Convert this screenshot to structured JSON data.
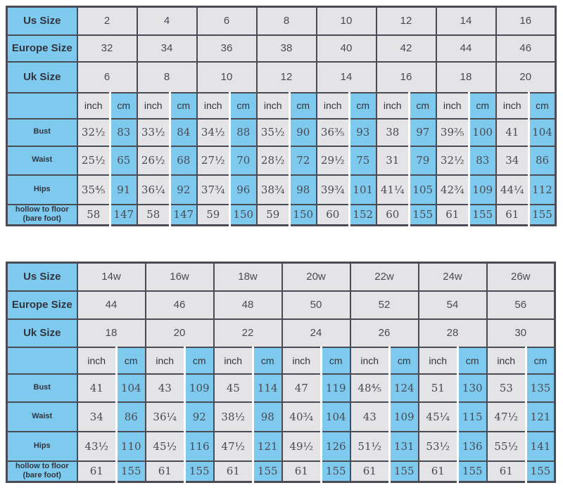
{
  "colors": {
    "cell_blue": "#7dcaee",
    "cell_gray": "#e4e3e5",
    "grid_line": "#4b4b55",
    "label_text": "#34343e",
    "number_text": "#4a4a55",
    "background": "#ffffff"
  },
  "chart_data": [
    {
      "type": "table",
      "unit_headers": [
        "inch",
        "cm"
      ],
      "size_rows": [
        {
          "label": "Us Size",
          "values": [
            "2",
            "4",
            "6",
            "8",
            "10",
            "12",
            "14",
            "16"
          ]
        },
        {
          "label": "Europe Size",
          "values": [
            "32",
            "34",
            "36",
            "38",
            "40",
            "42",
            "44",
            "46"
          ]
        },
        {
          "label": "Uk Size",
          "values": [
            "6",
            "8",
            "10",
            "12",
            "14",
            "16",
            "18",
            "20"
          ]
        }
      ],
      "measure_rows": [
        {
          "label": "Bust",
          "pairs": [
            [
              "32½",
              "83"
            ],
            [
              "33½",
              "84"
            ],
            [
              "34½",
              "88"
            ],
            [
              "35½",
              "90"
            ],
            [
              "36⅗",
              "93"
            ],
            [
              "38",
              "97"
            ],
            [
              "39⅖",
              "100"
            ],
            [
              "41",
              "104"
            ]
          ]
        },
        {
          "label": "Waist",
          "pairs": [
            [
              "25½",
              "65"
            ],
            [
              "26½",
              "68"
            ],
            [
              "27½",
              "70"
            ],
            [
              "28½",
              "72"
            ],
            [
              "29½",
              "75"
            ],
            [
              "31",
              "79"
            ],
            [
              "32½",
              "83"
            ],
            [
              "34",
              "86"
            ]
          ]
        },
        {
          "label": "Hips",
          "pairs": [
            [
              "35⅘",
              "91"
            ],
            [
              "36¼",
              "92"
            ],
            [
              "37¾",
              "96"
            ],
            [
              "38¾",
              "98"
            ],
            [
              "39¾",
              "101"
            ],
            [
              "41¼",
              "105"
            ],
            [
              "42¾",
              "109"
            ],
            [
              "44¼",
              "112"
            ]
          ]
        },
        {
          "label": "hollow to floor",
          "sublabel": "(bare foot)",
          "pairs": [
            [
              "58",
              "147"
            ],
            [
              "58",
              "147"
            ],
            [
              "59",
              "150"
            ],
            [
              "59",
              "150"
            ],
            [
              "60",
              "152"
            ],
            [
              "60",
              "155"
            ],
            [
              "61",
              "155"
            ],
            [
              "61",
              "155"
            ]
          ]
        }
      ]
    },
    {
      "type": "table",
      "unit_headers": [
        "inch",
        "cm"
      ],
      "size_rows": [
        {
          "label": "Us Size",
          "values": [
            "14w",
            "16w",
            "18w",
            "20w",
            "22w",
            "24w",
            "26w"
          ]
        },
        {
          "label": "Europe Size",
          "values": [
            "44",
            "46",
            "48",
            "50",
            "52",
            "54",
            "56"
          ]
        },
        {
          "label": "Uk Size",
          "values": [
            "18",
            "20",
            "22",
            "24",
            "26",
            "28",
            "30"
          ]
        }
      ],
      "measure_rows": [
        {
          "label": "Bust",
          "pairs": [
            [
              "41",
              "104"
            ],
            [
              "43",
              "109"
            ],
            [
              "45",
              "114"
            ],
            [
              "47",
              "119"
            ],
            [
              "48⅘",
              "124"
            ],
            [
              "51",
              "130"
            ],
            [
              "53",
              "135"
            ]
          ]
        },
        {
          "label": "Waist",
          "pairs": [
            [
              "34",
              "86"
            ],
            [
              "36¼",
              "92"
            ],
            [
              "38½",
              "98"
            ],
            [
              "40¾",
              "104"
            ],
            [
              "43",
              "109"
            ],
            [
              "45¼",
              "115"
            ],
            [
              "47½",
              "121"
            ]
          ]
        },
        {
          "label": "Hips",
          "pairs": [
            [
              "43½",
              "110"
            ],
            [
              "45½",
              "116"
            ],
            [
              "47½",
              "121"
            ],
            [
              "49½",
              "126"
            ],
            [
              "51½",
              "131"
            ],
            [
              "53½",
              "136"
            ],
            [
              "55½",
              "141"
            ]
          ]
        },
        {
          "label": "hollow to floor",
          "sublabel": "(bare foot)",
          "pairs": [
            [
              "61",
              "155"
            ],
            [
              "61",
              "155"
            ],
            [
              "61",
              "155"
            ],
            [
              "61",
              "155"
            ],
            [
              "61",
              "155"
            ],
            [
              "61",
              "155"
            ],
            [
              "61",
              "155"
            ]
          ]
        }
      ]
    }
  ]
}
